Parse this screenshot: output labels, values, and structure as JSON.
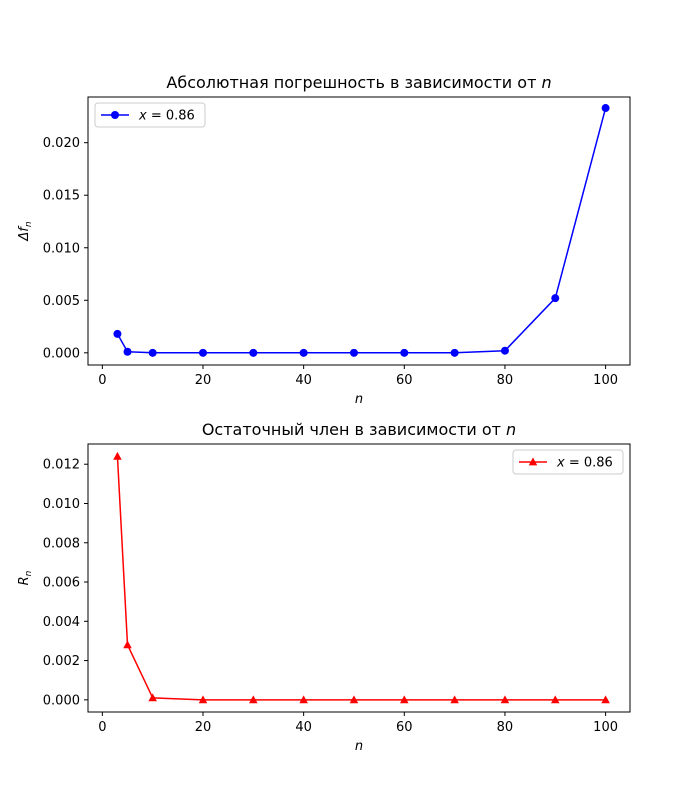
{
  "chart_data": [
    {
      "type": "line",
      "title": "Абсолютная погрешность в зависимости от",
      "title_var": "n",
      "xlabel": "n",
      "ylabel_main": "Δf",
      "ylabel_sub": "n",
      "xlim": [
        -2.85,
        104.85
      ],
      "ylim": [
        -0.00116,
        0.02435
      ],
      "xticks": [
        0,
        20,
        40,
        60,
        80,
        100
      ],
      "xtick_labels": [
        "0",
        "20",
        "40",
        "60",
        "80",
        "100"
      ],
      "yticks": [
        0.0,
        0.005,
        0.01,
        0.015,
        0.02
      ],
      "ytick_labels": [
        "0.000",
        "0.005",
        "0.010",
        "0.015",
        "0.020"
      ],
      "legend_position": "upper left",
      "series": [
        {
          "name": "x = 0.86",
          "name_var": "x",
          "name_rest": " = 0.86",
          "color": "#0000ff",
          "marker": "circle",
          "x": [
            3,
            5,
            10,
            20,
            30,
            40,
            50,
            60,
            70,
            80,
            90,
            100
          ],
          "y": [
            0.0018,
            0.0001,
            0.0,
            0.0,
            0.0,
            0.0,
            0.0,
            0.0,
            0.0,
            0.0002,
            0.0052,
            0.0233
          ]
        }
      ]
    },
    {
      "type": "line",
      "title": "Остаточный член в зависимости от",
      "title_var": "n",
      "xlabel": "n",
      "ylabel_main": "R",
      "ylabel_sub": "n",
      "xlim": [
        -2.85,
        104.85
      ],
      "ylim": [
        -0.00062,
        0.01303
      ],
      "xticks": [
        0,
        20,
        40,
        60,
        80,
        100
      ],
      "xtick_labels": [
        "0",
        "20",
        "40",
        "60",
        "80",
        "100"
      ],
      "yticks": [
        0.0,
        0.002,
        0.004,
        0.006,
        0.008,
        0.01,
        0.012
      ],
      "ytick_labels": [
        "0.000",
        "0.002",
        "0.004",
        "0.006",
        "0.008",
        "0.010",
        "0.012"
      ],
      "legend_position": "upper right",
      "series": [
        {
          "name": "x = 0.86",
          "name_var": "x",
          "name_rest": " = 0.86",
          "color": "#ff0000",
          "marker": "triangle-up",
          "x": [
            3,
            5,
            10,
            20,
            30,
            40,
            50,
            60,
            70,
            80,
            90,
            100
          ],
          "y": [
            0.0124,
            0.0028,
            0.0001,
            0.0,
            0.0,
            0.0,
            0.0,
            0.0,
            0.0,
            0.0,
            0.0,
            0.0
          ]
        }
      ]
    }
  ]
}
